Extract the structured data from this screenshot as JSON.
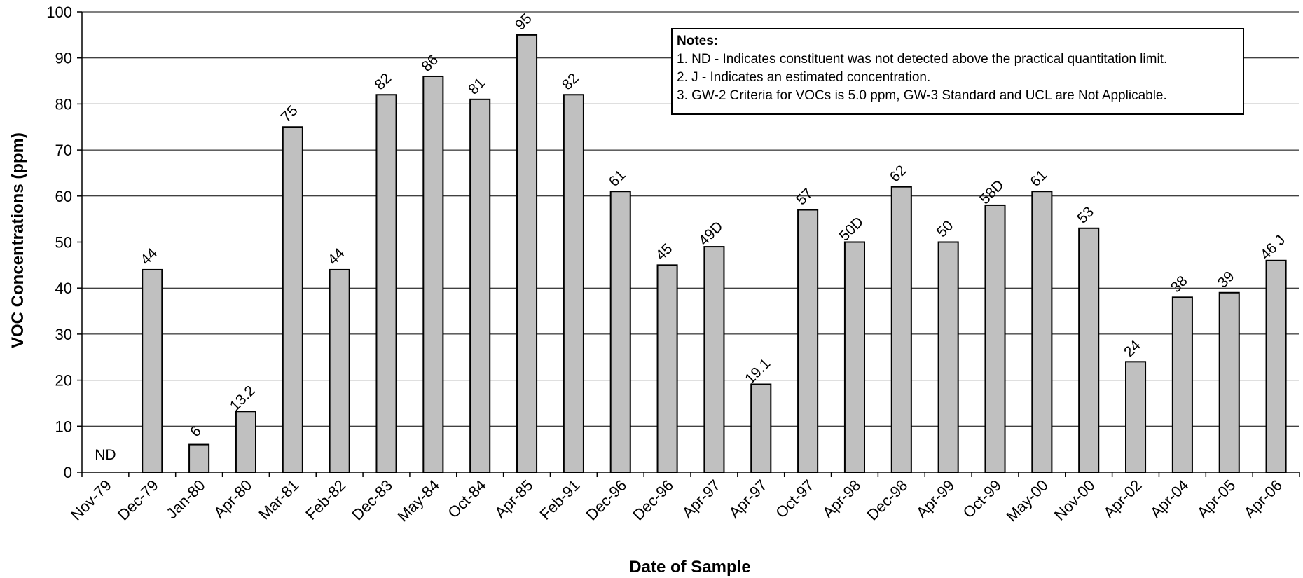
{
  "chart_data": {
    "type": "bar",
    "xlabel": "Date of Sample",
    "ylabel": "VOC Concentrations (ppm)",
    "ylim": [
      0,
      100
    ],
    "yticks": [
      0,
      10,
      20,
      30,
      40,
      50,
      60,
      70,
      80,
      90,
      100
    ],
    "grid": true,
    "bar_color": "#c0c0c0",
    "categories": [
      "Nov-79",
      "Dec-79",
      "Jan-80",
      "Apr-80",
      "Mar-81",
      "Feb-82",
      "Dec-83",
      "May-84",
      "Oct-84",
      "Apr-85",
      "Feb-91",
      "Dec-96",
      "Dec-96",
      "Apr-97",
      "Apr-97",
      "Oct-97",
      "Apr-98",
      "Dec-98",
      "Apr-99",
      "Oct-99",
      "May-00",
      "Nov-00",
      "Apr-02",
      "Apr-04",
      "Apr-05",
      "Apr-06"
    ],
    "values": [
      0,
      44,
      6,
      13.2,
      75,
      44,
      82,
      86,
      81,
      95,
      82,
      61,
      45,
      49,
      19.1,
      57,
      50,
      62,
      50,
      58,
      61,
      53,
      24,
      38,
      39,
      46
    ],
    "labels": [
      "ND",
      "44",
      "6",
      "13.2",
      "75",
      "44",
      "82",
      "86",
      "81",
      "95",
      "82",
      "61",
      "45",
      "49D",
      "19.1",
      "57",
      "50D",
      "62",
      "50",
      "58D",
      "61",
      "53",
      "24",
      "38",
      "39",
      "46 J"
    ],
    "notes": {
      "title": "Notes:",
      "lines": [
        "1.  ND - Indicates constituent was not detected above the practical quantitation limit.",
        "2.  J - Indicates an estimated concentration.",
        "3. GW-2 Criteria for VOCs is 5.0 ppm, GW-3 Standard and UCL are Not Applicable."
      ]
    }
  }
}
